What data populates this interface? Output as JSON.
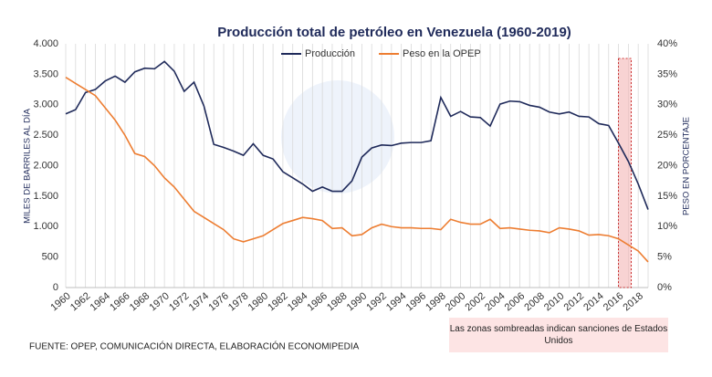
{
  "chart_data": {
    "type": "line",
    "title": "Producción  total de petróleo  en Venezuela  (1960-2019)",
    "y_label": "MILES DE BARRILES AL DÍA",
    "y2_label": "PESO EN PORCENTAJE",
    "source": "FUENTE: OPEP, COMUNICACIÓN DIRECTA, ELABORACIÓN ECONOMIPEDIA",
    "annotation": "Las zonas sombreadas indican sanciones de Estados Unidos",
    "highlight_x": [
      2016,
      2017.3
    ],
    "x": [
      1960,
      1961,
      1962,
      1963,
      1964,
      1965,
      1966,
      1967,
      1968,
      1969,
      1970,
      1971,
      1972,
      1973,
      1974,
      1975,
      1976,
      1977,
      1978,
      1979,
      1980,
      1981,
      1982,
      1983,
      1984,
      1985,
      1986,
      1987,
      1988,
      1989,
      1990,
      1991,
      1992,
      1993,
      1994,
      1995,
      1996,
      1997,
      1998,
      1999,
      2000,
      2001,
      2002,
      2003,
      2004,
      2005,
      2006,
      2007,
      2008,
      2009,
      2010,
      2011,
      2012,
      2013,
      2014,
      2015,
      2016,
      2017,
      2018,
      2019
    ],
    "xlim": [
      1960,
      2019
    ],
    "xticks": [
      1960,
      1962,
      1964,
      1966,
      1968,
      1970,
      1972,
      1974,
      1976,
      1978,
      1980,
      1982,
      1984,
      1986,
      1988,
      1990,
      1992,
      1994,
      1996,
      1998,
      2000,
      2002,
      2004,
      2006,
      2008,
      2010,
      2012,
      2014,
      2016,
      2018
    ],
    "ylim": [
      0,
      4000
    ],
    "yticks": [
      {
        "value": 0,
        "label": "0"
      },
      {
        "value": 500,
        "label": "500"
      },
      {
        "value": 1000,
        "label": "1.000"
      },
      {
        "value": 1500,
        "label": "1.500"
      },
      {
        "value": 2000,
        "label": "2.000"
      },
      {
        "value": 2500,
        "label": "2.500"
      },
      {
        "value": 3000,
        "label": "3.000"
      },
      {
        "value": 3500,
        "label": "3.500"
      },
      {
        "value": 4000,
        "label": "4.000"
      }
    ],
    "y2lim": [
      0,
      40
    ],
    "y2ticks": [
      {
        "value": 0,
        "label": "0%"
      },
      {
        "value": 5,
        "label": "5%"
      },
      {
        "value": 10,
        "label": "10%"
      },
      {
        "value": 15,
        "label": "15%"
      },
      {
        "value": 20,
        "label": "20%"
      },
      {
        "value": 25,
        "label": "25%"
      },
      {
        "value": 30,
        "label": "30%"
      },
      {
        "value": 35,
        "label": "35%"
      },
      {
        "value": 40,
        "label": "40%"
      }
    ],
    "grid": true,
    "series": [
      {
        "name": "Producción",
        "color": "#1f2a5a",
        "values": [
          2850,
          2920,
          3200,
          3250,
          3390,
          3470,
          3370,
          3540,
          3600,
          3590,
          3710,
          3550,
          3220,
          3370,
          2980,
          2350,
          2300,
          2240,
          2170,
          2360,
          2170,
          2110,
          1900,
          1800,
          1700,
          1580,
          1650,
          1580,
          1580,
          1750,
          2140,
          2290,
          2340,
          2330,
          2370,
          2380,
          2380,
          2410,
          3120,
          2810,
          2890,
          2800,
          2790,
          2650,
          3010,
          3060,
          3050,
          2990,
          2960,
          2880,
          2850,
          2880,
          2810,
          2800,
          2690,
          2660,
          2370,
          2070,
          1700,
          1280
        ]
      },
      {
        "name": "Peso en la OPEP",
        "color": "#ed7d31",
        "axis": "y2",
        "values": [
          34.5,
          33.5,
          32.5,
          31.5,
          29.5,
          27.5,
          25,
          22,
          21.5,
          20,
          18,
          16.5,
          14.5,
          12.5,
          11.5,
          10.5,
          9.5,
          8,
          7.5,
          8,
          8.5,
          9.5,
          10.5,
          11,
          11.5,
          11.3,
          11,
          9.7,
          9.8,
          8.5,
          8.7,
          9.8,
          10.4,
          10,
          9.8,
          9.8,
          9.7,
          9.7,
          9.5,
          11.2,
          10.7,
          10.4,
          10.4,
          11.2,
          9.7,
          9.8,
          9.6,
          9.4,
          9.3,
          9,
          9.8,
          9.6,
          9.3,
          8.6,
          8.7,
          8.5,
          8,
          7,
          6,
          4.2
        ]
      }
    ]
  }
}
